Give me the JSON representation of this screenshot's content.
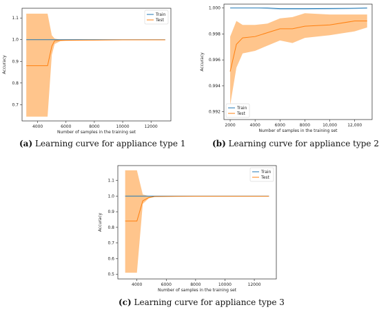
{
  "colors": {
    "train": "#1f77b4",
    "test": "#ff7f0e",
    "test_band": "#ffbb78"
  },
  "chart_data": [
    {
      "type": "line",
      "caption_letter": "(a)",
      "caption_text": "Learning curve for appliance type 1",
      "xlabel": "Number of samples in the training set",
      "ylabel": "Accuracy",
      "xlim": [
        2900,
        13400
      ],
      "ylim": [
        0.625,
        1.145
      ],
      "xticks": [
        4000,
        6000,
        8000,
        10000,
        12000
      ],
      "xtick_labels": [
        "4000",
        "6000",
        "8000",
        "10000",
        "12000"
      ],
      "yticks": [
        0.7,
        0.8,
        0.9,
        1.0,
        1.1
      ],
      "ytick_labels": [
        "0.7",
        "0.8",
        "0.9",
        "1.0",
        "1.1"
      ],
      "legend": {
        "position": "top-right",
        "entries": [
          "Train",
          "Test"
        ]
      },
      "series": [
        {
          "name": "Train",
          "x": [
            3200,
            4700,
            5200,
            5600,
            6000,
            8000,
            10000,
            13000
          ],
          "mean": [
            1.0,
            1.0,
            1.0,
            1.0,
            1.0,
            1.0,
            1.0,
            1.0
          ],
          "lower": [
            1.0,
            1.0,
            1.0,
            1.0,
            1.0,
            1.0,
            1.0,
            1.0
          ],
          "upper": [
            1.0,
            1.0,
            1.0,
            1.0,
            1.0,
            1.0,
            1.0,
            1.0
          ]
        },
        {
          "name": "Test",
          "x": [
            3200,
            4700,
            5000,
            5200,
            5600,
            6000,
            8000,
            10000,
            13000
          ],
          "mean": [
            0.88,
            0.88,
            0.97,
            0.995,
            0.997,
            0.997,
            0.998,
            0.999,
            0.999
          ],
          "lower": [
            0.645,
            0.645,
            0.93,
            0.98,
            0.993,
            0.995,
            0.997,
            0.999,
            0.999
          ],
          "upper": [
            1.12,
            1.12,
            1.02,
            1.005,
            1.0,
            1.0,
            0.999,
            0.999,
            0.999
          ]
        }
      ]
    },
    {
      "type": "line",
      "caption_letter": "(b)",
      "caption_text": "Learning curve for appliance type 2",
      "xlabel": "Number of samples in the training set",
      "ylabel": "Accuracy",
      "xlim": [
        1500,
        13400
      ],
      "ylim": [
        0.9914,
        1.0003
      ],
      "xticks": [
        2000,
        4000,
        6000,
        8000,
        10000,
        12000
      ],
      "xtick_labels": [
        "2000",
        "4000",
        "6000",
        "8000",
        "10,000",
        "12,000"
      ],
      "yticks": [
        0.992,
        0.994,
        0.996,
        0.998,
        1.0
      ],
      "ytick_labels": [
        "0.992",
        "0.994",
        "0.996",
        "0.998",
        "1.000"
      ],
      "legend": {
        "position": "bottom-left",
        "entries": [
          "Train",
          "Test"
        ]
      },
      "series": [
        {
          "name": "Train",
          "x": [
            2000,
            4000,
            5000,
            6000,
            8000,
            10000,
            12000,
            13000
          ],
          "mean": [
            1.0,
            1.0,
            1.0,
            0.99995,
            0.99995,
            0.99996,
            0.99998,
            1.0
          ],
          "lower": [
            1.0,
            1.0,
            0.99992,
            0.99986,
            0.99986,
            0.99988,
            0.99992,
            0.99994
          ],
          "upper": [
            1.0,
            1.0,
            1.0,
            1.0,
            1.0,
            1.0,
            1.0,
            1.0
          ]
        },
        {
          "name": "Test",
          "x": [
            2000,
            2500,
            3000,
            4000,
            5000,
            6000,
            7000,
            8000,
            10000,
            12000,
            13000
          ],
          "mean": [
            0.9951,
            0.9972,
            0.9977,
            0.9978,
            0.9981,
            0.9984,
            0.9984,
            0.9986,
            0.9987,
            0.999,
            0.999
          ],
          "lower": [
            0.9925,
            0.9954,
            0.9965,
            0.9967,
            0.9971,
            0.9975,
            0.9973,
            0.9977,
            0.9979,
            0.9982,
            0.9985
          ],
          "upper": [
            0.9978,
            0.999,
            0.9987,
            0.9987,
            0.9988,
            0.9992,
            0.9993,
            0.9996,
            0.9995,
            0.9995,
            0.9995
          ]
        }
      ]
    },
    {
      "type": "line",
      "caption_letter": "(c)",
      "caption_text": "Learning curve for appliance type 3",
      "xlabel": "Number of samples in the training set",
      "ylabel": "Accuracy",
      "xlim": [
        2700,
        13500
      ],
      "ylim": [
        0.47,
        1.195
      ],
      "xticks": [
        4000,
        6000,
        8000,
        10000,
        12000
      ],
      "xtick_labels": [
        "4000",
        "6000",
        "8000",
        "10000",
        "12000"
      ],
      "yticks": [
        0.5,
        0.6,
        0.7,
        0.8,
        0.9,
        1.0,
        1.1
      ],
      "ytick_labels": [
        "0.5",
        "0.6",
        "0.7",
        "0.8",
        "0.9",
        "1.0",
        "1.1"
      ],
      "legend": {
        "position": "top-right",
        "entries": [
          "Train",
          "Test"
        ]
      },
      "series": [
        {
          "name": "Train",
          "x": [
            3200,
            4000,
            5000,
            6000,
            8000,
            10000,
            13000
          ],
          "mean": [
            1.0,
            1.0,
            1.0,
            1.0,
            1.0,
            1.0,
            1.0
          ],
          "lower": [
            1.0,
            1.0,
            1.0,
            1.0,
            1.0,
            1.0,
            1.0
          ],
          "upper": [
            1.0,
            1.0,
            1.0,
            1.0,
            1.0,
            1.0,
            1.0
          ]
        },
        {
          "name": "Test",
          "x": [
            3200,
            4000,
            4400,
            4800,
            5200,
            6000,
            8000,
            10000,
            13000
          ],
          "mean": [
            0.84,
            0.84,
            0.97,
            0.99,
            0.997,
            0.998,
            0.999,
            0.999,
            0.999
          ],
          "lower": [
            0.51,
            0.51,
            0.95,
            0.985,
            0.995,
            0.997,
            0.999,
            0.999,
            0.999
          ],
          "upper": [
            1.165,
            1.165,
            1.01,
            1.001,
            1.0,
            1.0,
            1.0,
            0.999,
            0.999
          ]
        }
      ]
    }
  ]
}
